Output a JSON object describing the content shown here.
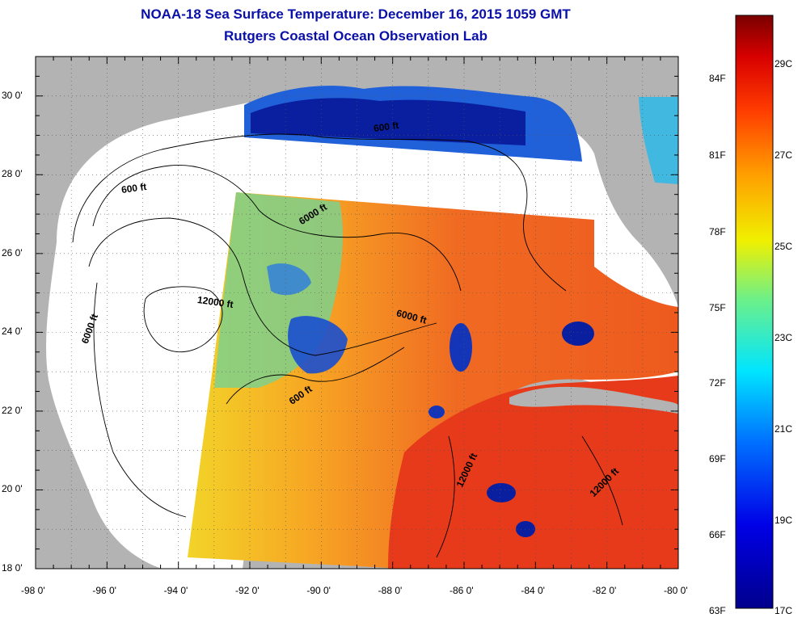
{
  "title": {
    "line1": "NOAA-18 Sea Surface Temperature:  December 16, 2015 1059 GMT",
    "line2": "Rutgers Coastal Ocean Observation Lab"
  },
  "axes": {
    "lon_labels": [
      "-98 0'",
      "-96 0'",
      "-94 0'",
      "-92 0'",
      "-90 0'",
      "-88 0'",
      "-86 0'",
      "-84 0'",
      "-82 0'",
      "-80 0'"
    ],
    "lat_labels": [
      "30 0'",
      "28 0'",
      "26 0'",
      "24 0'",
      "22 0'",
      "20 0'",
      "18 0'"
    ]
  },
  "contours": {
    "c600_north": "600 ft",
    "c600_west": "600 ft",
    "c600_south": "600 ft",
    "c6000_north": "6000 ft",
    "c6000_west": "6000 ft",
    "c6000_east": "6000 ft",
    "c12000_center": "12000 ft",
    "c12000_south1": "12000 ft",
    "c12000_south2": "12000 ft"
  },
  "colorbar": {
    "fahrenheit": [
      "84F",
      "81F",
      "78F",
      "75F",
      "72F",
      "69F",
      "66F",
      "63F"
    ],
    "celsius": [
      "29C",
      "27C",
      "25C",
      "23C",
      "21C",
      "19C",
      "17C"
    ]
  },
  "colors": {
    "title": "#0a10a8",
    "land": "#b3b3b3",
    "no_data": "#ffffff",
    "warm": "#e8401c",
    "mid": "#f6b21c",
    "cool": "#59c8a8",
    "cold": "#0a1fa0"
  }
}
